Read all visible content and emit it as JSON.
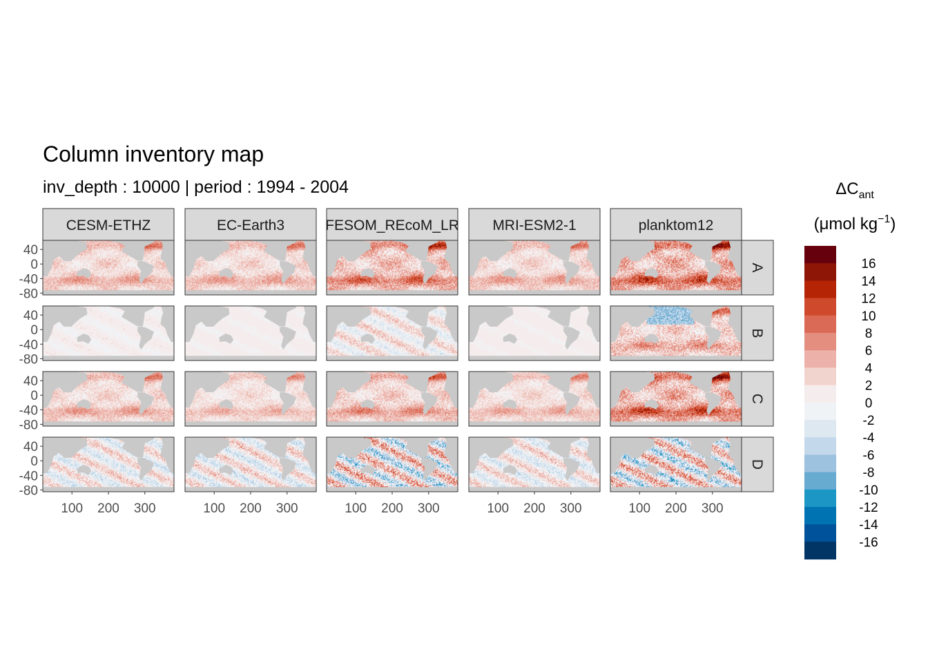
{
  "chart_data": {
    "type": "heatmap",
    "title": "Column inventory map",
    "subtitle": "inv_depth : 10000 | period : 1994 - 2004",
    "legend": {
      "title_main": "ΔC",
      "title_sub": "ant",
      "unit_prefix": "(μmol kg",
      "unit_sup": "−1",
      "unit_suffix": ")",
      "placement": "right",
      "breaks": [
        16,
        14,
        12,
        10,
        8,
        6,
        4,
        2,
        0,
        -2,
        -4,
        -6,
        -8,
        -10,
        -12,
        -14,
        -16
      ],
      "bins": [
        {
          "color": "#67000d"
        },
        {
          "color": "#8e1607"
        },
        {
          "color": "#b52505"
        },
        {
          "color": "#cf4a2c"
        },
        {
          "color": "#da6a55"
        },
        {
          "color": "#e48e7f"
        },
        {
          "color": "#ecb1a8"
        },
        {
          "color": "#f2d4cf"
        },
        {
          "color": "#f5eded"
        },
        {
          "color": "#f0f3f6"
        },
        {
          "color": "#dde8f1"
        },
        {
          "color": "#c3d9eb"
        },
        {
          "color": "#9dc2df"
        },
        {
          "color": "#67abd0"
        },
        {
          "color": "#1c96c4"
        },
        {
          "color": "#0074b3"
        },
        {
          "color": "#00529a"
        },
        {
          "color": "#003566"
        }
      ]
    },
    "columns": [
      "CESM-ETHZ",
      "EC-Earth3",
      "FESOM_REcoM_LR",
      "MRI-ESM2-1",
      "planktom12"
    ],
    "rows": [
      "A",
      "B",
      "C",
      "D"
    ],
    "x_ticks": [
      100,
      200,
      300
    ],
    "y_ticks": [
      40,
      0,
      -40,
      -80
    ],
    "xlim": [
      20,
      380
    ],
    "ylim": [
      -85,
      65
    ],
    "land_color": "#c9c9c9",
    "panel_magnitude": [
      [
        0.55,
        0.55,
        0.85,
        0.55,
        1.0
      ],
      [
        0.15,
        0.1,
        0.45,
        0.08,
        0.75
      ],
      [
        0.55,
        0.45,
        0.65,
        0.5,
        1.0
      ],
      [
        0.55,
        0.6,
        1.0,
        0.55,
        1.0
      ]
    ],
    "panel_sign_mode": [
      [
        1,
        1,
        1,
        1,
        1
      ],
      [
        0,
        0,
        0,
        0,
        -1
      ],
      [
        1,
        1,
        1,
        1,
        1
      ],
      [
        0,
        0,
        0,
        0,
        0
      ]
    ]
  }
}
